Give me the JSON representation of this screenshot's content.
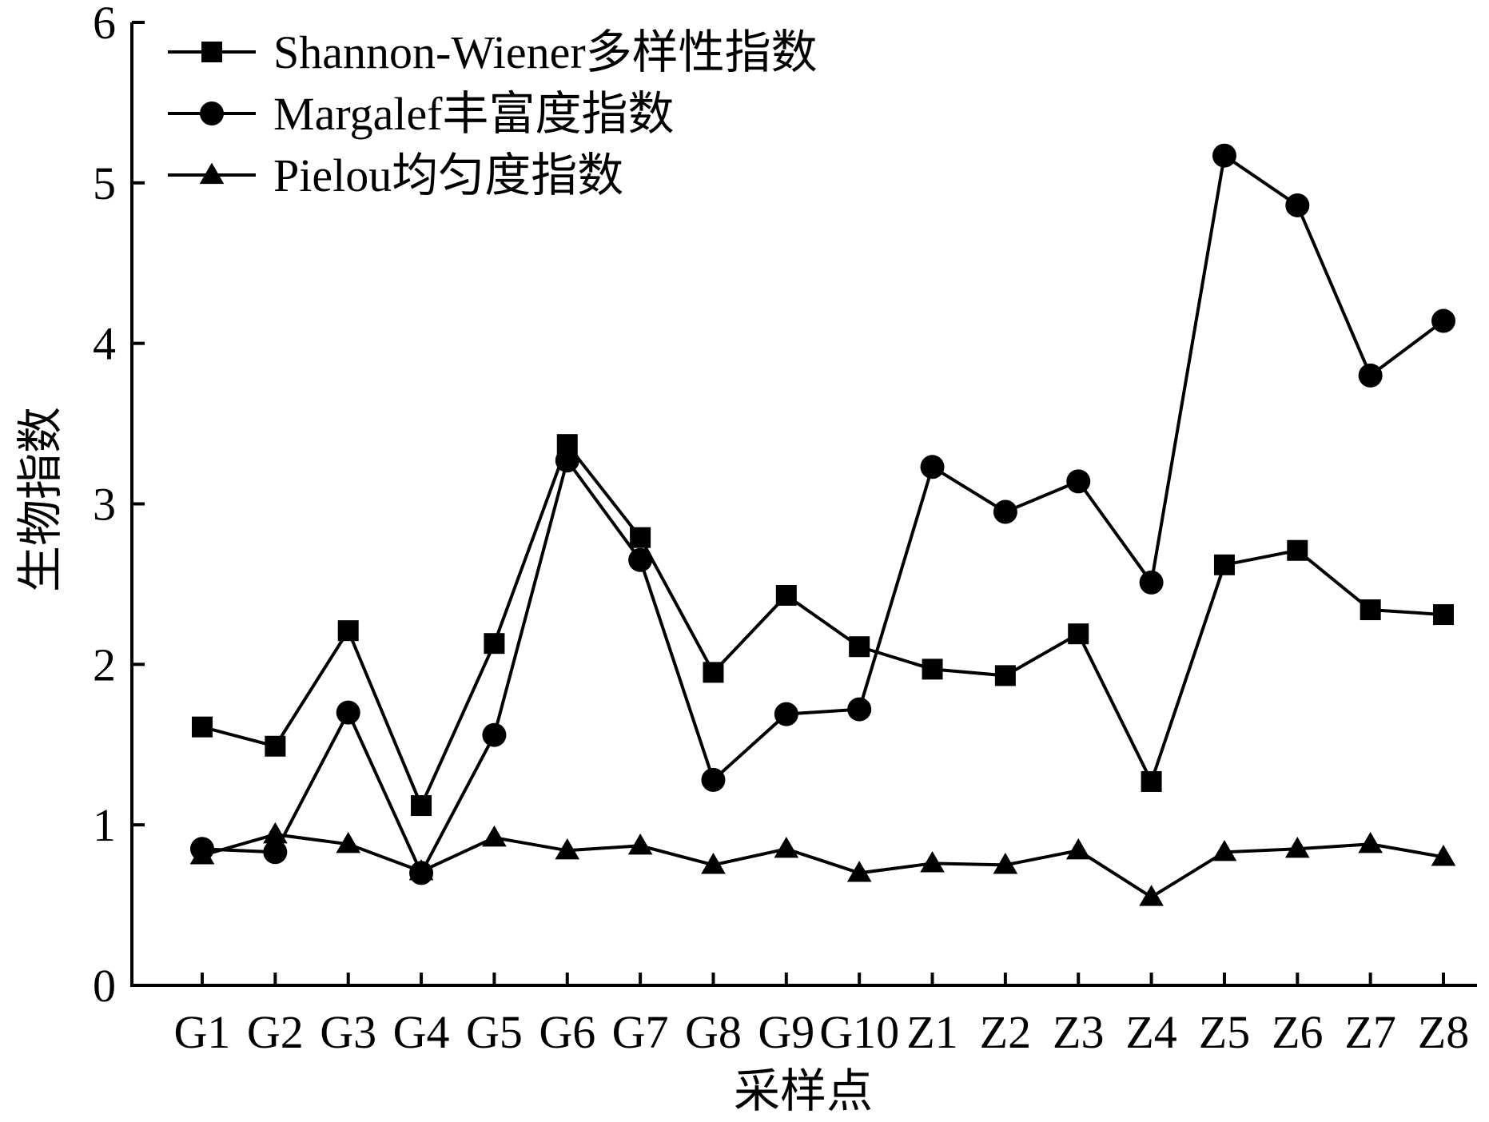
{
  "chart_data": {
    "type": "line",
    "title": "",
    "xlabel": "采样点",
    "ylabel": "生物指数",
    "ylim": [
      0,
      6
    ],
    "yticks": [
      "0",
      "1",
      "2",
      "3",
      "4",
      "5",
      "6"
    ],
    "grid": false,
    "legend_position": "top-left",
    "categories": [
      "G1",
      "G2",
      "G3",
      "G4",
      "G5",
      "G6",
      "G7",
      "G8",
      "G9",
      "G10",
      "Z1",
      "Z2",
      "Z3",
      "Z4",
      "Z5",
      "Z6",
      "Z7",
      "Z8"
    ],
    "series": [
      {
        "name": "Shannon-Wiener多样性指数",
        "marker": "square",
        "values": [
          1.61,
          1.49,
          2.21,
          1.12,
          2.13,
          3.37,
          2.79,
          1.95,
          2.43,
          2.11,
          1.97,
          1.93,
          2.19,
          1.27,
          2.62,
          2.71,
          2.34,
          2.31
        ]
      },
      {
        "name": "Margalef丰富度指数",
        "marker": "circle",
        "values": [
          0.85,
          0.83,
          1.7,
          0.7,
          1.56,
          3.27,
          2.65,
          1.28,
          1.69,
          1.72,
          3.23,
          2.95,
          3.14,
          2.51,
          5.17,
          4.86,
          3.8,
          4.14
        ]
      },
      {
        "name": "Pielou均匀度指数",
        "marker": "triangle",
        "values": [
          0.81,
          0.94,
          0.88,
          0.71,
          0.92,
          0.84,
          0.87,
          0.75,
          0.85,
          0.7,
          0.76,
          0.75,
          0.84,
          0.55,
          0.83,
          0.85,
          0.88,
          0.8
        ]
      }
    ],
    "colors": {
      "line": "#000000",
      "background": "#ffffff"
    }
  }
}
